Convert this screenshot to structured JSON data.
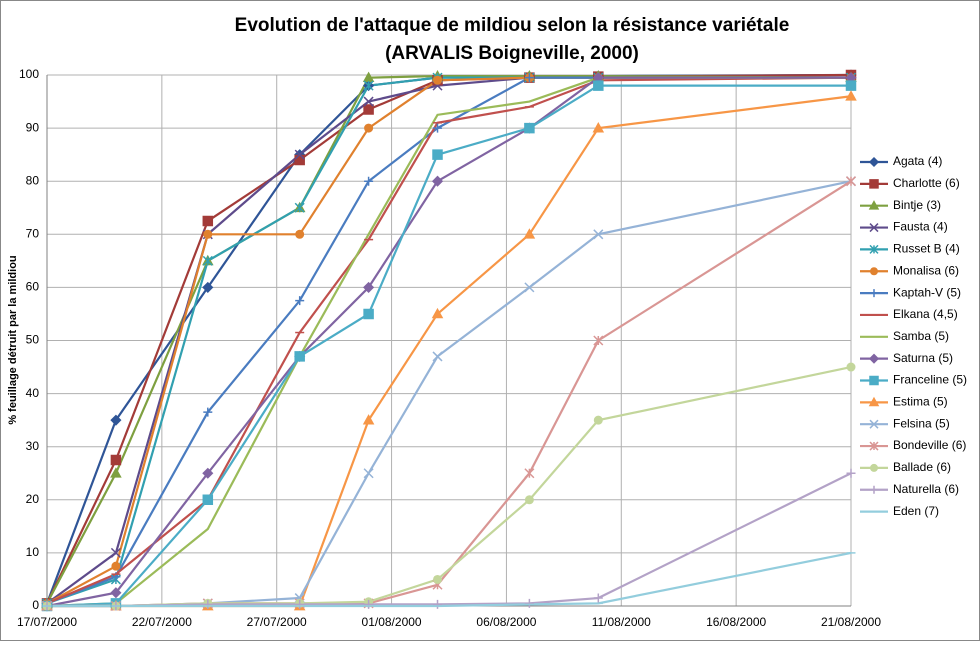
{
  "chart_data": {
    "type": "line",
    "title": "Evolution de l'attaque de mildiou selon la résistance variétale",
    "subtitle": "(ARVALIS Boigneville, 2000)",
    "y_label": "% feuillage détruit par la mildiou",
    "x": [
      "17/07/2000",
      "20/07/2000",
      "24/07/2000",
      "28/07/2000",
      "31/07/2000",
      "03/08/2000",
      "07/08/2000",
      "10/08/2000",
      "21/08/2000"
    ],
    "xlim": [
      "17/07/2000",
      "21/08/2000"
    ],
    "xticks": [
      "17/07/2000",
      "22/07/2000",
      "27/07/2000",
      "01/08/2000",
      "06/08/2000",
      "11/08/2000",
      "16/08/2000",
      "21/08/2000"
    ],
    "ylim": [
      0,
      100
    ],
    "yticks": [
      0,
      10,
      20,
      30,
      40,
      50,
      60,
      70,
      80,
      90,
      100
    ],
    "grid": true,
    "legend": "right",
    "series": [
      {
        "name": "Agata (4)",
        "color": "#2f5597",
        "marker": "diamond",
        "values": [
          0.5,
          35,
          60,
          85,
          98,
          99.5,
          99.7,
          99.8,
          100
        ]
      },
      {
        "name": "Charlotte (6)",
        "color": "#a33b38",
        "marker": "square",
        "values": [
          0.5,
          27.5,
          72.5,
          84,
          93.5,
          99,
          99.5,
          99.7,
          100
        ]
      },
      {
        "name": "Bintje (3)",
        "color": "#7ea040",
        "marker": "triangle",
        "values": [
          0.5,
          25,
          65,
          75,
          99.5,
          99.8,
          99.8,
          99.8,
          99.5
        ]
      },
      {
        "name": "Fausta (4)",
        "color": "#5e4b8b",
        "marker": "x",
        "values": [
          0.5,
          10,
          70,
          85,
          95,
          98,
          99.5,
          99.5,
          99.5
        ]
      },
      {
        "name": "Russet B (4)",
        "color": "#31a0b0",
        "marker": "star",
        "values": [
          0.5,
          5,
          65,
          75,
          98,
          99.5,
          99.5,
          99.5,
          99.5
        ]
      },
      {
        "name": "Monalisa (6)",
        "color": "#e0812e",
        "marker": "circle",
        "values": [
          0.5,
          7.5,
          70,
          70,
          90,
          99,
          99.5,
          99.5,
          99.5
        ]
      },
      {
        "name": "Kaptah-V (5)",
        "color": "#4a7cc0",
        "marker": "plus",
        "values": [
          0.5,
          5.5,
          36.5,
          57.5,
          80,
          90,
          99.5,
          99.5,
          99.5
        ]
      },
      {
        "name": "Elkana (4,5)",
        "color": "#c0504d",
        "marker": "dash",
        "values": [
          0.5,
          6,
          20,
          51.5,
          69,
          91,
          94,
          99,
          99.5
        ]
      },
      {
        "name": "Samba (5)",
        "color": "#9bbb59",
        "marker": "none",
        "values": [
          0,
          0.5,
          14.5,
          47,
          70,
          92.5,
          95,
          99.5,
          99.5
        ]
      },
      {
        "name": "Saturna (5)",
        "color": "#8064a2",
        "marker": "diamond",
        "values": [
          0,
          2.5,
          25,
          47,
          60,
          80,
          90,
          99.5,
          99.5
        ]
      },
      {
        "name": "Franceline (5)",
        "color": "#4bacc6",
        "marker": "square",
        "values": [
          0,
          0.5,
          20,
          47,
          55,
          85,
          90,
          98,
          98
        ]
      },
      {
        "name": "Estima (5)",
        "color": "#f79646",
        "marker": "triangle",
        "values": [
          0,
          0,
          0,
          0,
          35,
          55,
          70,
          90,
          96
        ]
      },
      {
        "name": "Felsina (5)",
        "color": "#95b3d7",
        "marker": "x",
        "values": [
          0,
          0,
          0.5,
          1.5,
          25,
          47,
          60,
          70,
          80
        ]
      },
      {
        "name": "Bondeville (6)",
        "color": "#d99694",
        "marker": "star",
        "values": [
          0,
          0,
          0.5,
          0.5,
          0.5,
          4,
          25,
          50,
          80
        ]
      },
      {
        "name": "Ballade (6)",
        "color": "#c3d69b",
        "marker": "circle",
        "values": [
          0,
          0,
          0.5,
          0.5,
          0.8,
          5,
          20,
          35,
          45
        ]
      },
      {
        "name": "Naturella (6)",
        "color": "#b3a2c7",
        "marker": "plus",
        "values": [
          0,
          0,
          0.3,
          0.3,
          0.3,
          0.3,
          0.5,
          1.5,
          25
        ]
      },
      {
        "name": "Eden (7)",
        "color": "#93cddd",
        "marker": "dash",
        "values": [
          0,
          0,
          0,
          0,
          0,
          0,
          0.3,
          0.5,
          10
        ]
      }
    ]
  }
}
